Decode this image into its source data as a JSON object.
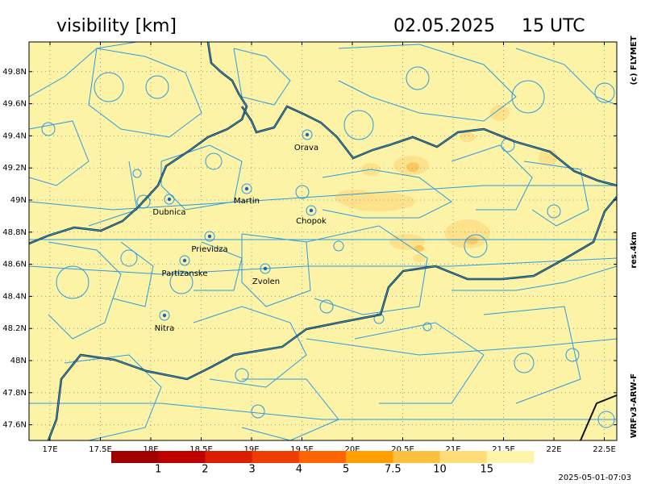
{
  "header": {
    "title": "visibility [km]",
    "date": "02.05.2025",
    "time": "15 UTC"
  },
  "side_labels": {
    "copyright": "(c) FLYMET",
    "resolution": "res.4km",
    "model": "WRFv3-ARW-F"
  },
  "map": {
    "lon_ticks": [
      {
        "value": 17,
        "label": "17E"
      },
      {
        "value": 17.5,
        "label": "17.5E"
      },
      {
        "value": 18,
        "label": "18E"
      },
      {
        "value": 18.5,
        "label": "18.5E"
      },
      {
        "value": 19,
        "label": "19E"
      },
      {
        "value": 19.5,
        "label": "19.5E"
      },
      {
        "value": 20,
        "label": "20E"
      },
      {
        "value": 20.5,
        "label": "20.5E"
      },
      {
        "value": 21,
        "label": "21E"
      },
      {
        "value": 21.5,
        "label": "21.5E"
      },
      {
        "value": 22,
        "label": "22E"
      },
      {
        "value": 22.5,
        "label": "22.5E"
      }
    ],
    "lat_ticks": [
      {
        "value": 49.8,
        "label": "49.8N"
      },
      {
        "value": 49.6,
        "label": "49.6N"
      },
      {
        "value": 49.4,
        "label": "49.4N"
      },
      {
        "value": 49.2,
        "label": "49.2N"
      },
      {
        "value": 49,
        "label": "49N"
      },
      {
        "value": 48.8,
        "label": "48.8N"
      },
      {
        "value": 48.6,
        "label": "48.6N"
      },
      {
        "value": 48.4,
        "label": "48.4N"
      },
      {
        "value": 48.2,
        "label": "48.2N"
      },
      {
        "value": 48,
        "label": "48N"
      },
      {
        "value": 47.8,
        "label": "47.8N"
      },
      {
        "value": 47.6,
        "label": "47.6N"
      }
    ],
    "cities": [
      "Orava",
      "Dubnica",
      "Martin",
      "Chopok",
      "Prievidza",
      "Partizanske",
      "Zvolen",
      "Nitra"
    ]
  },
  "colorbar": {
    "levels": [
      1,
      2,
      3,
      4,
      5,
      7.5,
      10,
      15
    ],
    "colors": [
      "#a00000",
      "#c00000",
      "#dc1e00",
      "#f03c00",
      "#ff6400",
      "#ffa000",
      "#ffc040",
      "#ffdc78",
      "#fff5aa"
    ]
  },
  "footer": {
    "timestamp": "2025-05-01-07:03"
  }
}
